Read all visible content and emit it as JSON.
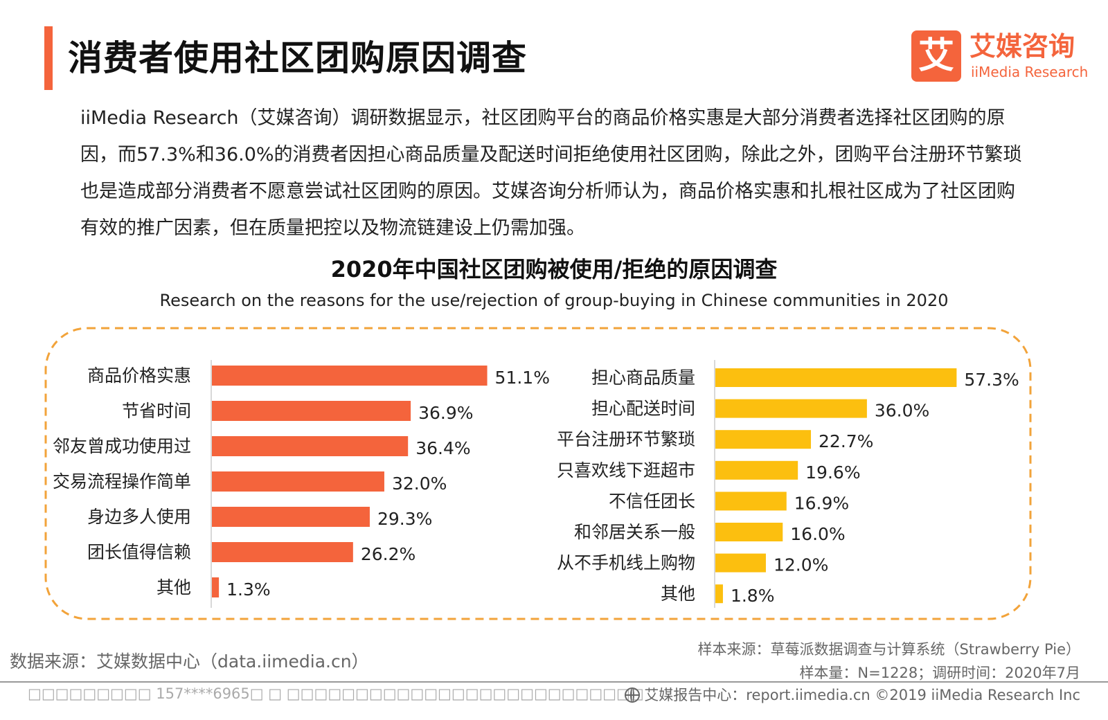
{
  "colors": {
    "accent": "#f4643c",
    "bar_left": "#f4643c",
    "bar_right": "#fcbf0f",
    "frame": "#f2a33a",
    "axis": "#d8d8d8"
  },
  "header": {
    "title": "消费者使用社区团购原因调查"
  },
  "logo": {
    "glyph": "艾",
    "name_cn": "艾媒咨询",
    "name_en": "iiMedia Research"
  },
  "intro": {
    "text": "iiMedia Research（艾媒咨询）调研数据显示，社区团购平台的商品价格实惠是大部分消费者选择社区团购的原因，而57.3%和36.0%的消费者因担心商品质量及配送时间拒绝使用社区团购，除此之外，团购平台注册环节繁琐也是造成部分消费者不愿意尝试社区团购的原因。艾媒咨询分析师认为，商品价格实惠和扎根社区成为了社区团购有效的推广因素，但在质量把控以及物流链建设上仍需加强。"
  },
  "chart_data": {
    "type": "bar",
    "orientation": "horizontal",
    "title": "2020年中国社区团购被使用/拒绝的原因调查",
    "subtitle": "Research on the reasons for the use/rejection of group-buying in Chinese communities in 2020",
    "unit": "%",
    "panels": [
      {
        "categories": [
          "商品价格实惠",
          "节省时间",
          "邻友曾成功使用过",
          "交易流程操作简单",
          "身边多人使用",
          "团长值得信赖",
          "其他"
        ],
        "values": [
          51.1,
          36.9,
          36.4,
          32.0,
          29.3,
          26.2,
          1.3
        ],
        "labels": [
          "51.1%",
          "36.9%",
          "36.4%",
          "32.0%",
          "29.3%",
          "26.2%",
          "1.3%"
        ],
        "color": "#f4643c"
      },
      {
        "categories": [
          "担心商品质量",
          "担心配送时间",
          "平台注册环节繁琐",
          "只喜欢线下逛超市",
          "不信任团长",
          "和邻居关系一般",
          "从不手机线上购物",
          "其他"
        ],
        "values": [
          57.3,
          36.0,
          22.7,
          19.6,
          16.9,
          16.0,
          12.0,
          1.8
        ],
        "labels": [
          "57.3%",
          "36.0%",
          "22.7%",
          "19.6%",
          "16.9%",
          "16.0%",
          "12.0%",
          "1.8%"
        ],
        "color": "#fcbf0f"
      }
    ]
  },
  "footer": {
    "source_left": "数据来源：艾媒数据中心（data.iimedia.cn）",
    "sample_source": "样本来源：草莓派数据调查与计算系统（Strawberry Pie）",
    "sample_size": "样本量：N=1228；调研时间：2020年7月",
    "watermark": "□□□□□□□□□ 157****6965□ □ □□□□□□□□□□□□□□□□□□□□□□□□□□",
    "report_center": "艾媒报告中心：report.iimedia.cn   ©2019  iiMedia Research  Inc"
  }
}
